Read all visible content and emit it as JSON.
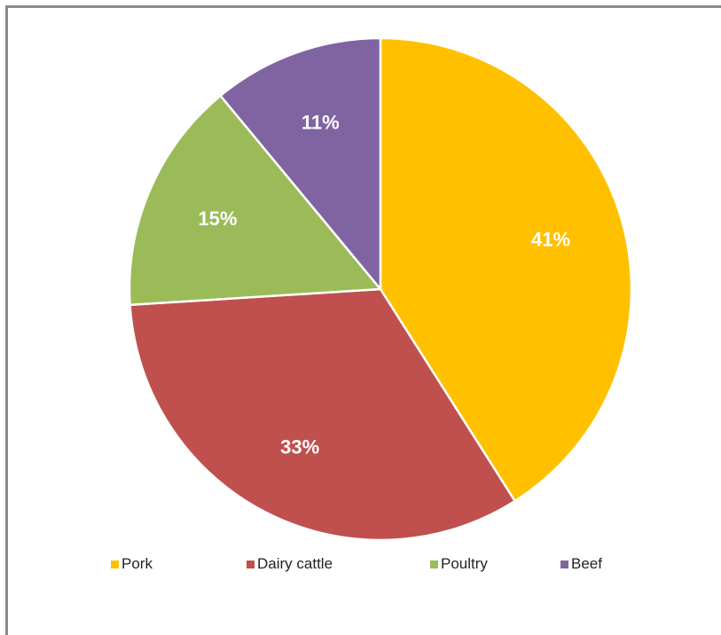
{
  "chart_data": {
    "type": "pie",
    "title": "",
    "categories": [
      "Pork",
      "Dairy cattle",
      "Poultry",
      "Beef"
    ],
    "values": [
      41,
      33,
      15,
      11
    ],
    "labels": [
      "41%",
      "33%",
      "15%",
      "11%"
    ],
    "colors": [
      "#FFC000",
      "#C0504D",
      "#9BBB59",
      "#8064A2"
    ],
    "start_angle_deg": 0,
    "direction": "clockwise",
    "legend_position": "bottom",
    "label_color": "#FFFFFF"
  }
}
